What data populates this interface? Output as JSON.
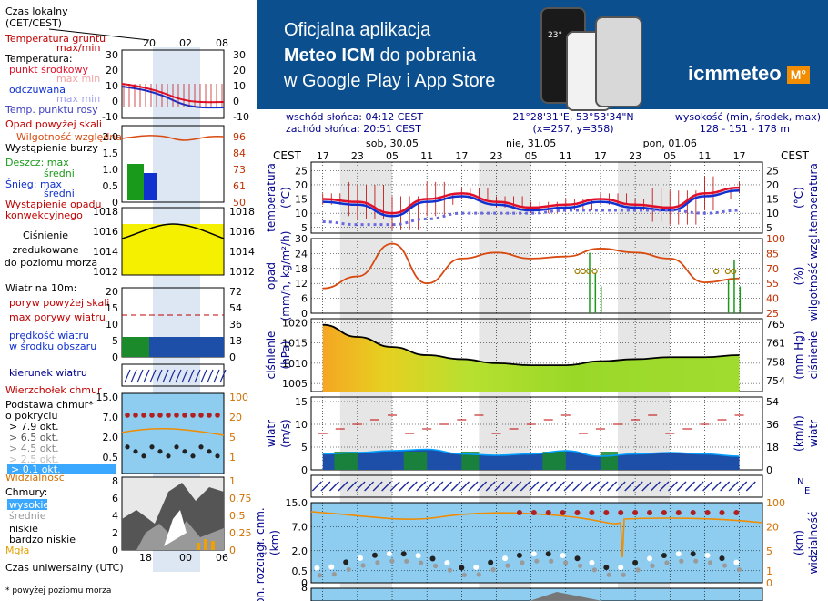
{
  "banner": {
    "line1": "Oficjalna aplikacja",
    "line2": "Meteo ICM",
    "line2b": " do pobrania",
    "line3": "w Google Play i App Store",
    "logo": "icmmeteo",
    "logo_badge": "M°",
    "phone_temp": "23°"
  },
  "header": {
    "sunrise": "wschód słońca: 04:12 CEST",
    "sunset": "zachód słońca: 20:51 CEST",
    "coords": "21°28'31\"E, 53°53'34\"N",
    "grid": "(x=257,  y=358)",
    "height_label": "wysokość (min, środek, max)",
    "height_values": "128 - 151 - 178 m"
  },
  "timeline": {
    "zone": "CEST",
    "days": [
      "sob, 30.05",
      "nie, 31.05",
      "pon, 01.06"
    ],
    "hours": [
      "17",
      "23",
      "05",
      "11",
      "17",
      "23",
      "05",
      "11",
      "17",
      "23",
      "05",
      "11",
      "17"
    ]
  },
  "legend": {
    "zone_title": "Czas lokalny",
    "zone_sub": "(CET/CEST)",
    "legend_hours": [
      "20",
      "02",
      "08"
    ],
    "utc_hours": [
      "18",
      "00",
      "06"
    ],
    "utc_label": "Czas uniwersalny (UTC)",
    "footnote": "* powyżej poziomu morza",
    "temp": [
      "Temperatura gruntu",
      "max/min",
      "Temperatura:",
      "punkt środkowy",
      "max min",
      "odczuwana",
      "max min",
      "Temp. punktu rosy"
    ],
    "temp_ticks": [
      "30",
      "20",
      "10",
      "0",
      "-10"
    ],
    "precip": [
      "Opad powyżej skali",
      "Wilgotność względna",
      "Wystąpienie burzy",
      "Deszcz: max",
      "średni",
      "Śnieg: max",
      "średni",
      "Wystąpienie opadu konwekcyjnego"
    ],
    "precip_ticks": [
      "2.0",
      "1.5",
      "1.0",
      "0.5",
      "0"
    ],
    "precip_right": [
      "96",
      "84",
      "73",
      "61",
      "50"
    ],
    "pressure": [
      "Ciśnienie",
      "zredukowane",
      "do poziomu morza"
    ],
    "pressure_ticks": [
      "1018",
      "1016",
      "1014",
      "1012"
    ],
    "wind": [
      "Wiatr na 10m:",
      "poryw powyżej skali",
      "max porywy wiatru",
      "prędkość wiatru",
      "w środku obszaru"
    ],
    "wind_ticks": [
      "20",
      "15",
      "10",
      "5",
      "0"
    ],
    "wind_right": [
      "72",
      "54",
      "36",
      "18",
      "0"
    ],
    "wind_dir": "kierunek wiatru",
    "cloudbase": [
      "Wierzchołek chmur",
      "Podstawa chmur*",
      "o pokryciu",
      "> 7.9 okt.",
      "> 6.5 okt.",
      "> 4.5 okt.",
      "> 2.5 okt.",
      "> 0.1 okt.",
      "Widzialność"
    ],
    "cloudbase_ticks": [
      "15.0",
      "7.0",
      "2.0",
      "0.5"
    ],
    "cloudbase_right": [
      "100",
      "20",
      "5",
      "1"
    ],
    "clouds": [
      "Chmury:",
      "wysokie",
      "średnie",
      "niskie",
      "bardzo niskie",
      "Mgła"
    ],
    "clouds_ticks": [
      "8",
      "6",
      "4",
      "2",
      "0"
    ],
    "clouds_right": [
      "1",
      "0.75",
      "0.5",
      "0.25",
      "0"
    ]
  },
  "panels": {
    "temp": {
      "ylabel": "temperatura",
      "unit": "(°C)",
      "ticks": [
        "25",
        "20",
        "15",
        "10",
        "5"
      ]
    },
    "precip": {
      "ylabel": "opad",
      "unit": "(mm/h, kg/m²/h)",
      "ticks": [
        "30",
        "24",
        "18",
        "12",
        "6",
        "0"
      ],
      "rlabel": "wilgotność wzgl.",
      "runit": "(%)",
      "rticks": [
        "100",
        "85",
        "70",
        "55",
        "40",
        "25"
      ]
    },
    "pressure": {
      "ylabel": "ciśnienie",
      "unit": "(hPa)",
      "ticks": [
        "1020",
        "1015",
        "1010",
        "1005"
      ],
      "rlabel": "ciśnienie",
      "runit": "(mm Hg)",
      "rticks": [
        "765",
        "761",
        "758",
        "754"
      ]
    },
    "wind": {
      "ylabel": "wiatr",
      "unit": "(m/s)",
      "ticks": [
        "15",
        "10",
        "5",
        "0"
      ],
      "rlabel": "wiatr",
      "runit": "(km/h)",
      "rticks": [
        "54",
        "36",
        "18",
        "0"
      ]
    },
    "winddir": {
      "label": "N",
      "label2": "E"
    },
    "cloud": {
      "ylabel": "pion. rozciągł. chm.",
      "unit": "(km)",
      "ticks": [
        "15.0",
        "7.0",
        "2.0",
        "0.5",
        "0"
      ],
      "rlabel": "widzialność",
      "runit": "(km)",
      "rticks": [
        "100",
        "20",
        "5",
        "1",
        "0"
      ]
    },
    "bottom": {
      "tick": "8"
    }
  },
  "chart_data": [
    {
      "type": "line",
      "title": "temperatura",
      "ylabel": "(°C)",
      "ylim": [
        3,
        28
      ],
      "x": [
        0,
        6,
        12,
        18,
        24,
        30,
        36,
        42,
        48,
        54,
        60,
        66,
        72
      ],
      "series": [
        {
          "name": "punkt środkowy",
          "values": [
            15,
            14,
            10,
            15,
            17,
            14,
            12,
            13,
            15,
            13,
            12,
            17,
            19
          ]
        },
        {
          "name": "odczuwana",
          "values": [
            14,
            13,
            9,
            14,
            16,
            13,
            11,
            12,
            14,
            12,
            11,
            16,
            18
          ]
        },
        {
          "name": "Temp. punktu rosy",
          "values": [
            7,
            6,
            6,
            8,
            10,
            10,
            10,
            11,
            11,
            11,
            11,
            10,
            11
          ]
        }
      ]
    },
    {
      "type": "line",
      "title": "opad",
      "ylabel": "(mm/h, kg/m²/h)",
      "ylim": [
        0,
        30
      ],
      "x": [
        0,
        6,
        12,
        18,
        24,
        30,
        36,
        42,
        48,
        54,
        60,
        66,
        72
      ],
      "series": [
        {
          "name": "Wilgotność względna",
          "values": [
            50,
            62,
            95,
            55,
            80,
            86,
            80,
            82,
            90,
            86,
            80,
            56,
            60
          ]
        }
      ]
    },
    {
      "type": "area",
      "title": "ciśnienie",
      "ylabel": "(hPa)",
      "ylim": [
        1003,
        1021
      ],
      "x": [
        0,
        6,
        12,
        18,
        24,
        30,
        36,
        42,
        48,
        54,
        60,
        66,
        72
      ],
      "series": [
        {
          "name": "ciśnienie",
          "values": [
            1019.5,
            1016.5,
            1014,
            1012,
            1011,
            1010,
            1009.5,
            1009.5,
            1010.5,
            1011,
            1011.5,
            1011.5,
            1012
          ]
        }
      ]
    },
    {
      "type": "area",
      "title": "wiatr",
      "ylabel": "(m/s)",
      "ylim": [
        0,
        16
      ],
      "x": [
        0,
        6,
        12,
        18,
        24,
        30,
        36,
        42,
        48,
        54,
        60,
        66,
        72
      ],
      "series": [
        {
          "name": "prędkość wiatru",
          "values": [
            3.5,
            3.8,
            4.2,
            4.5,
            3.5,
            3.2,
            3.5,
            4.2,
            3,
            3.5,
            3.8,
            3.5,
            3
          ]
        }
      ]
    }
  ]
}
